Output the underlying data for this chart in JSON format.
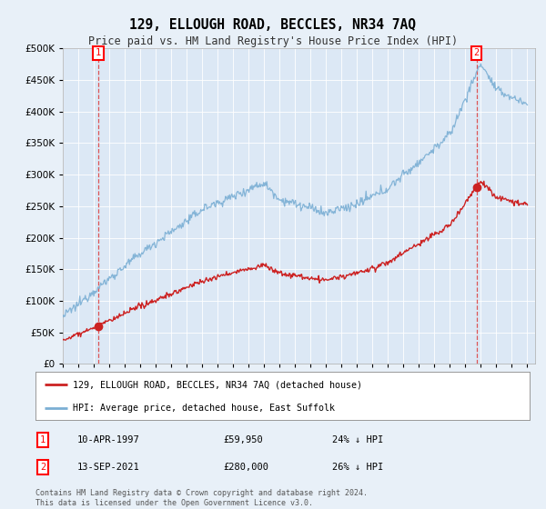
{
  "title": "129, ELLOUGH ROAD, BECCLES, NR34 7AQ",
  "subtitle": "Price paid vs. HM Land Registry's House Price Index (HPI)",
  "background_color": "#e8f0f8",
  "plot_bg_color": "#dce8f5",
  "legend_label_red": "129, ELLOUGH ROAD, BECCLES, NR34 7AQ (detached house)",
  "legend_label_blue": "HPI: Average price, detached house, East Suffolk",
  "transaction1_date": "10-APR-1997",
  "transaction1_price": "£59,950",
  "transaction1_hpi": "24% ↓ HPI",
  "transaction1_year": 1997.28,
  "transaction1_value": 59950,
  "transaction2_date": "13-SEP-2021",
  "transaction2_price": "£280,000",
  "transaction2_hpi": "26% ↓ HPI",
  "transaction2_year": 2021.71,
  "transaction2_value": 280000,
  "footnote": "Contains HM Land Registry data © Crown copyright and database right 2024.\nThis data is licensed under the Open Government Licence v3.0.",
  "ylim": [
    0,
    500000
  ],
  "xlim_start": 1995,
  "xlim_end": 2025.5
}
